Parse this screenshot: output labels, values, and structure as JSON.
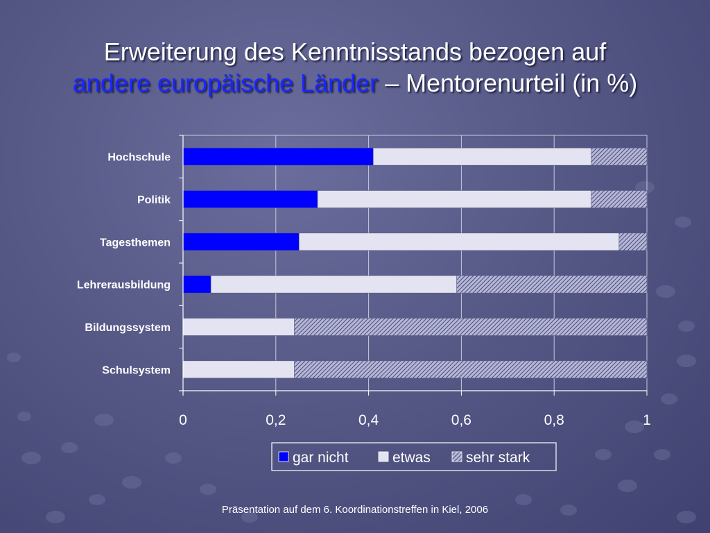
{
  "slide": {
    "title_line1": "Erweiterung des Kenntnisstands bezogen auf",
    "title_highlight": "andere europäische Länder",
    "title_rest": " – Mentorenurteil (in %)",
    "footer": "Präsentation auf dem 6. Koordinationstreffen in Kiel, 2006"
  },
  "chart_data": {
    "type": "bar",
    "orientation": "horizontal",
    "stacked": true,
    "categories": [
      "Hochschule",
      "Politik",
      "Tagesthemen",
      "Lehrerausbildung",
      "Bildungssystem",
      "Schulsystem"
    ],
    "series": [
      {
        "name": "gar nicht",
        "values": [
          0.41,
          0.29,
          0.25,
          0.06,
          0.0,
          0.0
        ],
        "color": "#0000ff"
      },
      {
        "name": "etwas",
        "values": [
          0.47,
          0.59,
          0.69,
          0.53,
          0.24,
          0.24
        ],
        "color": "#e4e3f2"
      },
      {
        "name": "sehr stark",
        "values": [
          0.12,
          0.12,
          0.06,
          0.41,
          0.76,
          0.76
        ],
        "color": "#a9aacb",
        "pattern": "crosshatch"
      }
    ],
    "xlim": [
      0,
      1
    ],
    "xticks": [
      "0",
      "0,2",
      "0,4",
      "0,6",
      "0,8",
      "1"
    ],
    "grid": true,
    "legend": "bottom-center"
  }
}
